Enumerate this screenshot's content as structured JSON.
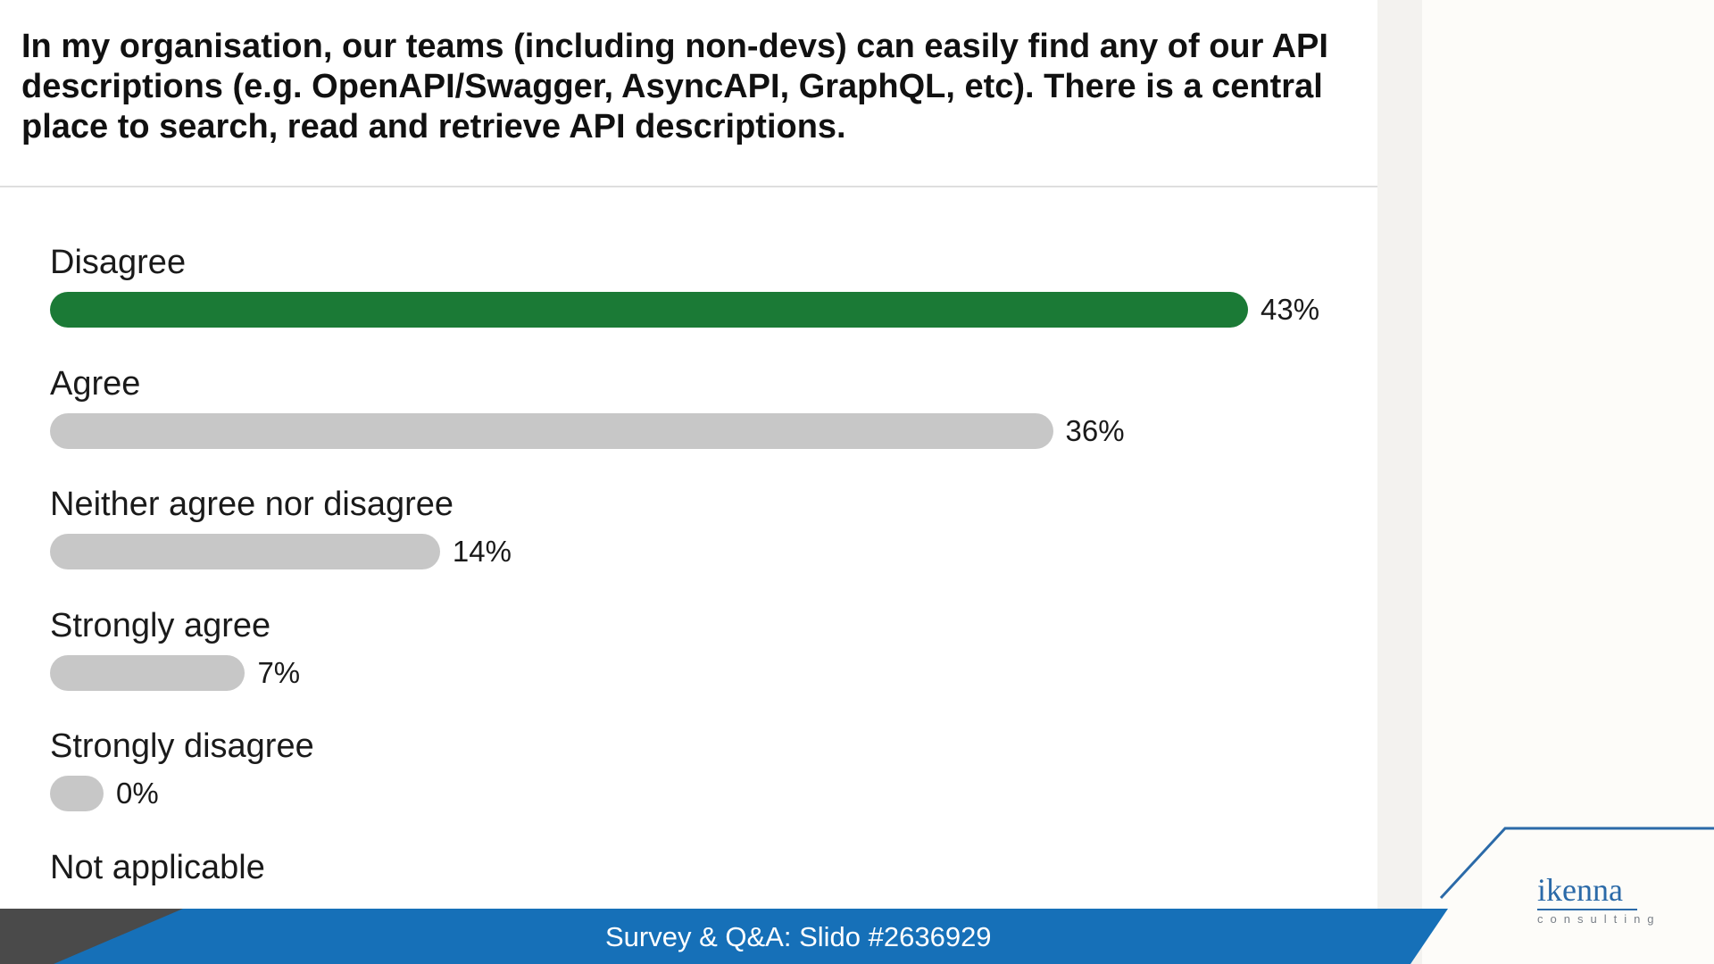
{
  "question": "In my organisation, our teams (including non-devs) can easily find any of our API descriptions (e.g. OpenAPI/Swagger, AsyncAPI, GraphQL, etc). There is a central place to search, read and retrieve API descriptions.",
  "chart_data": {
    "type": "bar",
    "orientation": "horizontal",
    "categories": [
      "Disagree",
      "Agree",
      "Neither agree nor disagree",
      "Strongly agree",
      "Strongly disagree",
      "Not applicable"
    ],
    "values": [
      43,
      36,
      14,
      7,
      0,
      null
    ],
    "value_labels": [
      "43%",
      "36%",
      "14%",
      "7%",
      "0%",
      ""
    ],
    "unit": "%",
    "highlight_color": "#1b7a36",
    "bar_color": "#c7c7c7",
    "grid": false
  },
  "footer": {
    "text": "Survey & Q&A: Slido #2636929",
    "bar_color": "#1670b8",
    "corner_color": "#4a4a4a"
  },
  "logo": {
    "name": "ikenna",
    "tagline": "consulting",
    "color": "#2b6aa8"
  }
}
